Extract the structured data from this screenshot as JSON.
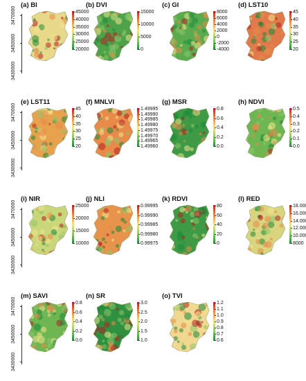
{
  "y_ticks": [
    "3470000",
    "3450000",
    "3430000"
  ],
  "rows_with_axis": [
    0,
    4,
    8,
    12
  ],
  "panels": [
    {
      "title": "(a) BI",
      "ticks": [
        "45000",
        "40000",
        "35000",
        "30000",
        "25000",
        "20000"
      ],
      "colors": [
        "#1a8a3a",
        "#8cc66b",
        "#f2e48a",
        "#e88a4a",
        "#b22222"
      ],
      "base": "#e8d88a"
    },
    {
      "title": "(b) DVI",
      "ticks": [
        "15000",
        "10000",
        "5000",
        "0"
      ],
      "colors": [
        "#1a8a3a",
        "#8cc66b",
        "#f2e48a",
        "#e88a4a",
        "#b22222"
      ],
      "base": "#4ea24a"
    },
    {
      "title": "(c) GI",
      "ticks": [
        "8000",
        "6000",
        "4000",
        "2000",
        "0",
        "-2000",
        "-4000"
      ],
      "colors": [
        "#1a8a3a",
        "#8cc66b",
        "#f2e48a",
        "#e88a4a",
        "#b22222"
      ],
      "base": "#5aab4e"
    },
    {
      "title": "(d) LST10",
      "ticks": [
        "45",
        "40",
        "35",
        "30",
        "25",
        "20"
      ],
      "colors": [
        "#1a8a3a",
        "#8cc66b",
        "#f2e48a",
        "#e88a4a",
        "#b22222"
      ],
      "base": "#e07a4a"
    },
    {
      "title": "(e) LST11",
      "ticks": [
        "45",
        "40",
        "35",
        "30",
        "25",
        "20"
      ],
      "colors": [
        "#1a8a3a",
        "#8cc66b",
        "#f2e48a",
        "#e88a4a",
        "#b22222"
      ],
      "base": "#e8a24e"
    },
    {
      "title": "(f) MNLVI",
      "ticks": [
        "1.49995",
        "1.49990",
        "1.49985",
        "1.49980",
        "1.49975",
        "1.49970",
        "1.49965",
        "1.49960"
      ],
      "colors": [
        "#1a8a3a",
        "#8cc66b",
        "#f2e48a",
        "#e88a4a",
        "#b22222"
      ],
      "base": "#e88a4a"
    },
    {
      "title": "(g) MSR",
      "ticks": [
        "0.8",
        "0.6",
        "0.4",
        "0.2",
        "0.0"
      ],
      "colors": [
        "#1a8a3a",
        "#8cc66b",
        "#f2e48a",
        "#e88a4a",
        "#b22222"
      ],
      "base": "#3e9a44"
    },
    {
      "title": "(h) NDVI",
      "ticks": [
        "0.5",
        "0.4",
        "0.3",
        "0.2",
        "0.1",
        "0.0"
      ],
      "colors": [
        "#1a8a3a",
        "#8cc66b",
        "#f2e48a",
        "#e88a4a",
        "#b22222"
      ],
      "base": "#6eb652"
    },
    {
      "title": "(i) NIR",
      "ticks": [
        "25000",
        "20000",
        "15000",
        "10000"
      ],
      "colors": [
        "#1a8a3a",
        "#8cc66b",
        "#f2e48a",
        "#e88a4a",
        "#b22222"
      ],
      "base": "#c9d67a"
    },
    {
      "title": "(j) NLI",
      "ticks": [
        "0.99995",
        "0.99990",
        "0.99985",
        "0.99980",
        "0.99975"
      ],
      "colors": [
        "#1a8a3a",
        "#8cc66b",
        "#f2e48a",
        "#e88a4a",
        "#b22222"
      ],
      "base": "#e8934c"
    },
    {
      "title": "(k) RDVI",
      "ticks": [
        "80",
        "60",
        "40",
        "20",
        "0"
      ],
      "colors": [
        "#1a8a3a",
        "#8cc66b",
        "#f2e48a",
        "#e88a4a",
        "#b22222"
      ],
      "base": "#3e9a44"
    },
    {
      "title": "(l) RED",
      "ticks": [
        "18.000",
        "16.000",
        "14.000",
        "12.000",
        "10.000",
        "8000"
      ],
      "colors": [
        "#1a8a3a",
        "#8cc66b",
        "#f2e48a",
        "#e88a4a",
        "#b22222"
      ],
      "base": "#d9d47e"
    },
    {
      "title": "(m) SAVI",
      "ticks": [
        "0.8",
        "0.6",
        "0.4",
        "0.2",
        "0.0"
      ],
      "colors": [
        "#1a8a3a",
        "#8cc66b",
        "#f2e48a",
        "#e88a4a",
        "#b22222"
      ],
      "base": "#6eb652"
    },
    {
      "title": "(n) SR",
      "ticks": [
        "3.0",
        "2.5",
        "2.0",
        "1.5",
        "1.0"
      ],
      "colors": [
        "#1a8a3a",
        "#8cc66b",
        "#f2e48a",
        "#e88a4a",
        "#b22222"
      ],
      "base": "#2f9140"
    },
    {
      "title": "(o) TVI",
      "ticks": [
        "1.2",
        "1.1",
        "1.0",
        "0.9",
        "0.8",
        "0.7",
        "0.6"
      ],
      "colors": [
        "#1a8a3a",
        "#8cc66b",
        "#f2e48a",
        "#e88a4a",
        "#b22222"
      ],
      "base": "#f0d890"
    }
  ]
}
